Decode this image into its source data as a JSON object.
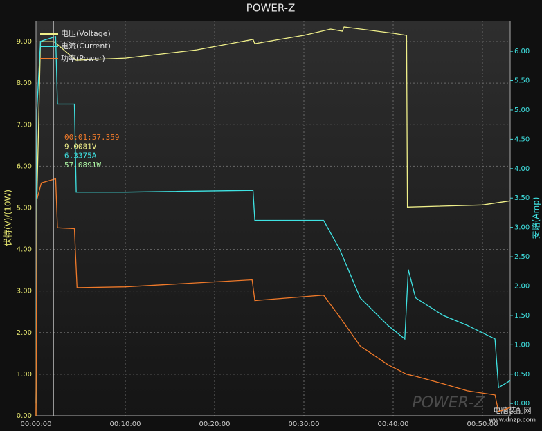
{
  "chart_data": {
    "type": "line",
    "title": "POWER-Z",
    "ylabel": "伏特(V)/(10W)",
    "y2label": "安培(Amp)",
    "xlim": [
      0,
      53.1
    ],
    "xticks": [
      {
        "value": 0,
        "label": "00:00:00"
      },
      {
        "value": 10,
        "label": "00:10:00"
      },
      {
        "value": 20,
        "label": "00:20:00"
      },
      {
        "value": 30,
        "label": "00:30:00"
      },
      {
        "value": 40,
        "label": "00:40:00"
      },
      {
        "value": 50,
        "label": "00:50:00"
      }
    ],
    "ylim": [
      0,
      9.5
    ],
    "yticks": [
      {
        "value": 0,
        "label": "0.00"
      },
      {
        "value": 1,
        "label": "1.00"
      },
      {
        "value": 2,
        "label": "2.00"
      },
      {
        "value": 3,
        "label": "3.00"
      },
      {
        "value": 4,
        "label": "4.00"
      },
      {
        "value": 5,
        "label": "5.00"
      },
      {
        "value": 6,
        "label": "6.00"
      },
      {
        "value": 7,
        "label": "7.00"
      },
      {
        "value": 8,
        "label": "8.00"
      },
      {
        "value": 9,
        "label": "9.00"
      }
    ],
    "y2lim": [
      -0.21,
      6.52
    ],
    "y2ticks": [
      {
        "value": 0,
        "label": "0.00"
      },
      {
        "value": 0.5,
        "label": "0.50"
      },
      {
        "value": 1,
        "label": "1.00"
      },
      {
        "value": 1.5,
        "label": "1.50"
      },
      {
        "value": 2,
        "label": "2.00"
      },
      {
        "value": 2.5,
        "label": "2.50"
      },
      {
        "value": 3,
        "label": "3.00"
      },
      {
        "value": 3.5,
        "label": "3.50"
      },
      {
        "value": 4,
        "label": "4.00"
      },
      {
        "value": 4.5,
        "label": "4.50"
      },
      {
        "value": 5,
        "label": "5.00"
      },
      {
        "value": 5.5,
        "label": "5.50"
      },
      {
        "value": 6,
        "label": "6.00"
      }
    ],
    "grid": true,
    "legend": "upper left",
    "cursor_x": 1.96,
    "series": [
      {
        "name": "电压(Voltage)",
        "color": "#f0f08a",
        "axis": "y",
        "x": [
          0,
          0.1,
          0.5,
          2,
          4.5,
          10,
          18,
          24.3,
          24.5,
          30,
          33,
          34.3,
          34.5,
          40,
          41.5,
          41.6,
          50,
          53.1
        ],
        "values": [
          0,
          5.2,
          9.0,
          9.0,
          8.55,
          8.6,
          8.8,
          9.05,
          8.95,
          9.15,
          9.3,
          9.25,
          9.35,
          9.2,
          9.15,
          5.02,
          5.07,
          5.17
        ]
      },
      {
        "name": "电流(Current)",
        "color": "#3fe3e3",
        "axis": "y2",
        "x": [
          0,
          0.1,
          0.5,
          2.2,
          2.4,
          4.3,
          4.5,
          10,
          24.3,
          24.5,
          32.2,
          34,
          36.3,
          39.4,
          41.3,
          41.7,
          42.5,
          45.6,
          48.3,
          51.4,
          51.8,
          53.1
        ],
        "values": [
          0,
          5.0,
          6.17,
          6.25,
          5.1,
          5.1,
          3.6,
          3.6,
          3.63,
          3.12,
          3.12,
          2.63,
          1.8,
          1.33,
          1.1,
          2.28,
          1.8,
          1.5,
          1.33,
          1.1,
          0.27,
          0.39
        ]
      },
      {
        "name": "功率(Power)",
        "color": "#f07a2a",
        "axis": "y",
        "x": [
          0,
          0.1,
          0.6,
          2.2,
          2.4,
          4.3,
          4.6,
          10,
          24.2,
          24.5,
          32.2,
          34,
          36.3,
          39.4,
          41.5,
          42.5,
          45.6,
          48.3,
          51.4,
          51.8,
          53.1
        ],
        "values": [
          0,
          5.2,
          5.6,
          5.7,
          4.52,
          4.5,
          3.08,
          3.1,
          3.27,
          2.77,
          2.9,
          2.38,
          1.68,
          1.23,
          1.0,
          0.95,
          0.77,
          0.6,
          0.5,
          0.1,
          0.2
        ]
      }
    ],
    "annotations": [
      {
        "text": "00:01:57.359",
        "color": "#f07a2a"
      },
      {
        "text": "9.0081V",
        "color": "#f0f08a"
      },
      {
        "text": "6.3375A",
        "color": "#3fe3e3"
      },
      {
        "text": "57.0891W",
        "color": "#a8f0a0"
      }
    ],
    "watermark": "POWER-Z",
    "source": "电脑装配网",
    "source_url": "www.dnzp.com"
  }
}
